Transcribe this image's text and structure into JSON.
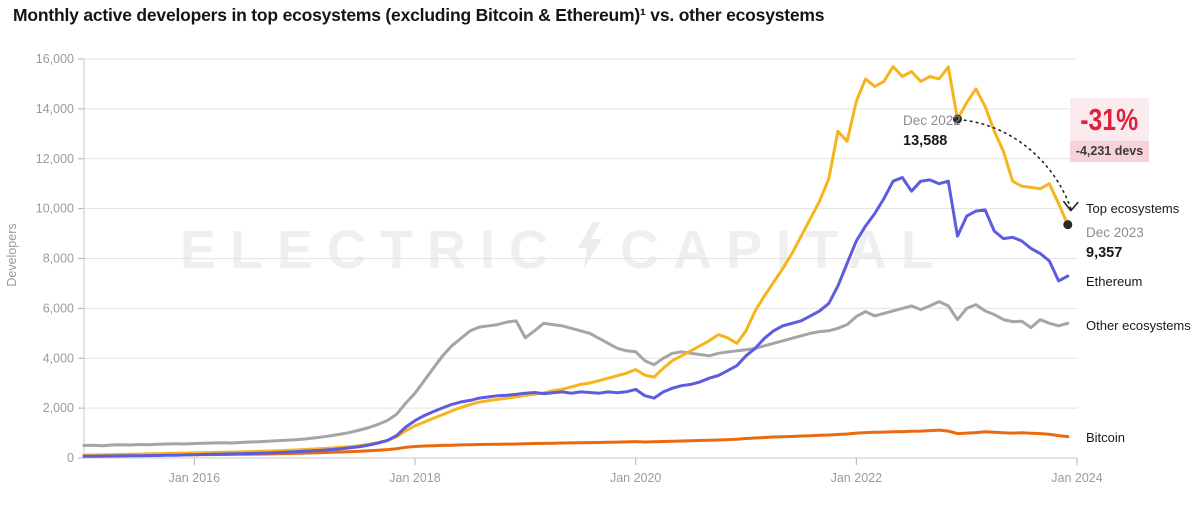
{
  "title": "Monthly active developers in top ecosystems (excluding Bitcoin & Ethereum)¹ vs. other ecosystems",
  "watermark": {
    "left": "ELECTRIC",
    "right": "CAPITAL"
  },
  "colors": {
    "top_ecosystems": "#f6b51e",
    "ethereum": "#5c5cdf",
    "other_ecosystems": "#a5a5a5",
    "bitcoin": "#eb6a0e",
    "grid": "#e3e3e3",
    "axis": "#c9c9c9",
    "tick": "#b3b3b3",
    "tick_text": "#9b9b9b",
    "annotation_dark": "#2b2b2b",
    "badge_red": "#e0213d",
    "badge_bg_top": "#fcebee",
    "badge_bg_bottom": "#f7d2d9"
  },
  "annotations": {
    "dec_2022": {
      "label": "Dec 2022",
      "value": "13,588",
      "month_index": 95
    },
    "dec_2023": {
      "label": "Dec 2023",
      "value": "9,357",
      "month_index": 107
    },
    "badge": {
      "percent": "-31%",
      "devs": "-4,231 devs"
    },
    "line_labels": {
      "top": "Top ecosystems",
      "ethereum": "Ethereum",
      "other": "Other ecosystems",
      "bitcoin": "Bitcoin"
    }
  },
  "chart_data": {
    "type": "line",
    "title": "Monthly active developers in top ecosystems (excluding Bitcoin & Ethereum) vs. other ecosystems",
    "xlabel": "",
    "ylabel": "Developers",
    "ylim": [
      0,
      16000
    ],
    "x_range": [
      "Jan 2015",
      "Dec 2023"
    ],
    "x_unit": "month",
    "months_span": 108,
    "grid": true,
    "legend_position": "right-of-line-ends",
    "y_ticks": [
      {
        "value": 0,
        "label": "0"
      },
      {
        "value": 2000,
        "label": "2,000"
      },
      {
        "value": 4000,
        "label": "4,000"
      },
      {
        "value": 6000,
        "label": "6,000"
      },
      {
        "value": 8000,
        "label": "8,000"
      },
      {
        "value": 10000,
        "label": "10,000"
      },
      {
        "value": 12000,
        "label": "12,000"
      },
      {
        "value": 14000,
        "label": "14,000"
      },
      {
        "value": 16000,
        "label": "16,000"
      }
    ],
    "x_ticks": [
      {
        "month_index": 12,
        "label": "Jan 2016"
      },
      {
        "month_index": 36,
        "label": "Jan 2018"
      },
      {
        "month_index": 60,
        "label": "Jan 2020"
      },
      {
        "month_index": 84,
        "label": "Jan 2022"
      },
      {
        "month_index": 108,
        "label": "Jan 2024"
      }
    ],
    "series": [
      {
        "name": "Top ecosystems",
        "color": "#f6b51e",
        "values": [
          120,
          126,
          132,
          138,
          144,
          150,
          157,
          164,
          172,
          180,
          188,
          196,
          205,
          212,
          220,
          228,
          236,
          245,
          255,
          266,
          278,
          291,
          305,
          322,
          341,
          360,
          380,
          402,
          428,
          458,
          496,
          548,
          618,
          706,
          850,
          1095,
          1290,
          1440,
          1590,
          1740,
          1890,
          2030,
          2140,
          2240,
          2300,
          2350,
          2400,
          2450,
          2510,
          2555,
          2605,
          2700,
          2755,
          2850,
          2950,
          3005,
          3100,
          3200,
          3300,
          3400,
          3550,
          3320,
          3250,
          3600,
          3900,
          4100,
          4300,
          4500,
          4700,
          4950,
          4820,
          4600,
          5100,
          5900,
          6500,
          7050,
          7600,
          8200,
          8900,
          9600,
          10300,
          11200,
          13100,
          12700,
          14300,
          15200,
          14900,
          15100,
          15700,
          15300,
          15500,
          15100,
          15300,
          15200,
          15680,
          13588,
          14250,
          14800,
          14100,
          13100,
          12300,
          11100,
          10900,
          10850,
          10800,
          11000,
          10200,
          9357
        ]
      },
      {
        "name": "Ethereum",
        "color": "#5c5cdf",
        "values": [
          70,
          73,
          76,
          80,
          84,
          88,
          92,
          96,
          101,
          107,
          114,
          123,
          133,
          140,
          148,
          156,
          165,
          173,
          182,
          191,
          202,
          215,
          231,
          250,
          270,
          291,
          314,
          340,
          369,
          408,
          458,
          520,
          600,
          702,
          900,
          1245,
          1500,
          1700,
          1860,
          2010,
          2150,
          2250,
          2310,
          2400,
          2450,
          2500,
          2520,
          2550,
          2600,
          2625,
          2580,
          2620,
          2650,
          2600,
          2650,
          2625,
          2600,
          2650,
          2620,
          2655,
          2750,
          2500,
          2400,
          2650,
          2800,
          2900,
          2950,
          3050,
          3200,
          3310,
          3500,
          3700,
          4100,
          4400,
          4800,
          5100,
          5300,
          5400,
          5500,
          5700,
          5900,
          6200,
          6900,
          7800,
          8700,
          9300,
          9800,
          10400,
          11100,
          11250,
          10700,
          11100,
          11150,
          11000,
          11100,
          8900,
          9700,
          9900,
          9950,
          9100,
          8800,
          8850,
          8700,
          8400,
          8200,
          7900,
          7100,
          7300
        ]
      },
      {
        "name": "Other ecosystems",
        "color": "#a5a5a5",
        "values": [
          500,
          512,
          492,
          522,
          532,
          522,
          542,
          532,
          552,
          562,
          572,
          562,
          582,
          592,
          602,
          612,
          602,
          622,
          642,
          652,
          672,
          692,
          712,
          732,
          762,
          802,
          852,
          902,
          962,
          1032,
          1122,
          1222,
          1352,
          1502,
          1752,
          2200,
          2600,
          3100,
          3600,
          4100,
          4500,
          4800,
          5100,
          5250,
          5300,
          5350,
          5450,
          5500,
          4820,
          5100,
          5400,
          5350,
          5300,
          5200,
          5100,
          5000,
          4800,
          4600,
          4400,
          4300,
          4260,
          3900,
          3740,
          4000,
          4200,
          4260,
          4200,
          4150,
          4100,
          4200,
          4250,
          4300,
          4340,
          4400,
          4500,
          4600,
          4700,
          4800,
          4900,
          5000,
          5070,
          5100,
          5200,
          5350,
          5670,
          5870,
          5700,
          5800,
          5900,
          6000,
          6100,
          5950,
          6100,
          6270,
          6100,
          5550,
          6000,
          6150,
          5900,
          5750,
          5550,
          5470,
          5480,
          5230,
          5550,
          5400,
          5300,
          5400
        ]
      },
      {
        "name": "Bitcoin",
        "color": "#eb6a0e",
        "values": [
          110,
          108,
          112,
          115,
          113,
          118,
          120,
          118,
          122,
          125,
          128,
          130,
          132,
          135,
          138,
          141,
          145,
          148,
          152,
          156,
          161,
          168,
          176,
          186,
          196,
          206,
          216,
          228,
          241,
          256,
          271,
          291,
          311,
          336,
          371,
          430,
          460,
          480,
          495,
          505,
          515,
          525,
          531,
          540,
          546,
          551,
          556,
          561,
          571,
          581,
          586,
          591,
          601,
          606,
          611,
          616,
          621,
          631,
          636,
          646,
          656,
          641,
          651,
          661,
          671,
          681,
          691,
          701,
          711,
          721,
          736,
          751,
          781,
          801,
          821,
          841,
          851,
          861,
          881,
          891,
          911,
          921,
          941,
          961,
          1000,
          1020,
          1030,
          1040,
          1050,
          1060,
          1070,
          1080,
          1100,
          1120,
          1080,
          980,
          1000,
          1020,
          1050,
          1030,
          1010,
          1000,
          1010,
          990,
          980,
          950,
          900,
          860
        ]
      }
    ]
  }
}
